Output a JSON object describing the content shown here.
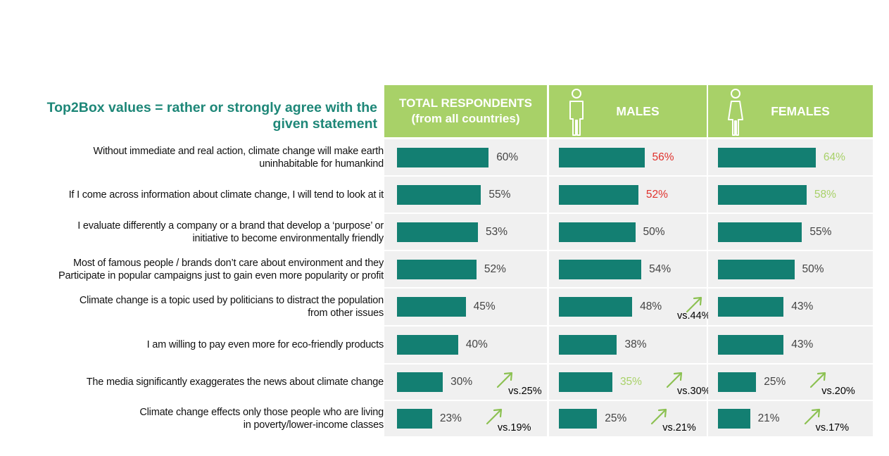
{
  "title": "Top2Box values = rather or strongly agree with the given statement",
  "colors": {
    "header": "#a8d168",
    "bar": "#137f72",
    "title": "#1e8778",
    "negative": "#e0322d",
    "positive": "#a8d168",
    "neutral": "#444444"
  },
  "headers": {
    "total_line1": "TOTAL RESPONDENTS",
    "total_line2": "(from all countries)",
    "males": "MALES",
    "females": "FEMALES",
    "male_icon": "male-person-icon",
    "female_icon": "female-person-icon"
  },
  "chart_data": {
    "type": "bar",
    "title": "Top2Box values = rather or strongly agree with the given statement",
    "categories": [
      "Without immediate and real action, climate change will make earth uninhabitable for humankind",
      "If I come across information about climate change, I will tend to look at it",
      "I evaluate differently a company or a brand that develop a ‘purpose’ or initiative to become environmentally friendly",
      "Most of famous people / brands don’t care about environment and they Participate in popular campaigns just to gain even more popularity or profit",
      "Climate change is a topic used by politicians to distract the population from other issues",
      "I am willing to pay even more for eco-friendly products",
      "The media significantly exaggerates the news about climate change",
      "Climate change effects only those people who are living in poverty/lower-income classes"
    ],
    "series": [
      {
        "name": "TOTAL RESPONDENTS (from all countries)",
        "values": [
          60,
          55,
          53,
          52,
          45,
          40,
          30,
          23
        ]
      },
      {
        "name": "MALES",
        "values": [
          56,
          52,
          50,
          54,
          48,
          38,
          35,
          25
        ]
      },
      {
        "name": "FEMALES",
        "values": [
          64,
          58,
          55,
          50,
          43,
          43,
          25,
          21
        ]
      }
    ],
    "value_suffix": "%"
  },
  "rows": [
    {
      "lines": [
        "Without immediate and real action, climate change will make earth",
        "uninhabitable for humankind"
      ],
      "cells": [
        {
          "value": 60,
          "label": "60%",
          "color": "neutral"
        },
        {
          "value": 56,
          "label": "56%",
          "color": "negative"
        },
        {
          "value": 64,
          "label": "64%",
          "color": "positive"
        }
      ]
    },
    {
      "lines": [
        "If I come across information about climate change, I will tend to look at it"
      ],
      "cells": [
        {
          "value": 55,
          "label": "55%",
          "color": "neutral"
        },
        {
          "value": 52,
          "label": "52%",
          "color": "negative"
        },
        {
          "value": 58,
          "label": "58%",
          "color": "positive"
        }
      ]
    },
    {
      "lines": [
        "I evaluate differently a company or a brand that develop a ‘purpose’ or",
        "initiative to become environmentally friendly"
      ],
      "cells": [
        {
          "value": 53,
          "label": "53%",
          "color": "neutral"
        },
        {
          "value": 50,
          "label": "50%",
          "color": "neutral"
        },
        {
          "value": 55,
          "label": "55%",
          "color": "neutral"
        }
      ]
    },
    {
      "lines": [
        "Most of famous people / brands don’t care about environment and they",
        "Participate in popular campaigns just to gain even more popularity or profit"
      ],
      "cells": [
        {
          "value": 52,
          "label": "52%",
          "color": "neutral"
        },
        {
          "value": 54,
          "label": "54%",
          "color": "neutral"
        },
        {
          "value": 50,
          "label": "50%",
          "color": "neutral"
        }
      ]
    },
    {
      "lines": [
        "Climate change is a topic used by politicians to distract the population",
        "from other issues"
      ],
      "cells": [
        {
          "value": 45,
          "label": "45%",
          "color": "neutral"
        },
        {
          "value": 48,
          "label": "48%",
          "color": "neutral",
          "compare": "vs.44%"
        },
        {
          "value": 43,
          "label": "43%",
          "color": "neutral"
        }
      ]
    },
    {
      "lines": [
        "I am willing to pay even more for eco-friendly products"
      ],
      "cells": [
        {
          "value": 40,
          "label": "40%",
          "color": "neutral"
        },
        {
          "value": 38,
          "label": "38%",
          "color": "neutral"
        },
        {
          "value": 43,
          "label": "43%",
          "color": "neutral"
        }
      ]
    },
    {
      "lines": [
        "The media significantly exaggerates the news about climate change"
      ],
      "cells": [
        {
          "value": 30,
          "label": "30%",
          "color": "neutral",
          "compare": "vs.25%"
        },
        {
          "value": 35,
          "label": "35%",
          "color": "positive",
          "compare": "vs.30%"
        },
        {
          "value": 25,
          "label": "25%",
          "color": "neutral",
          "compare": "vs.20%"
        }
      ]
    },
    {
      "lines": [
        "Climate change effects only those people who are living",
        "in poverty/lower-income classes"
      ],
      "cells": [
        {
          "value": 23,
          "label": "23%",
          "color": "neutral",
          "compare": "vs.19%"
        },
        {
          "value": 25,
          "label": "25%",
          "color": "neutral",
          "compare": "vs.21%"
        },
        {
          "value": 21,
          "label": "21%",
          "color": "neutral",
          "compare": "vs.17%"
        }
      ]
    }
  ]
}
